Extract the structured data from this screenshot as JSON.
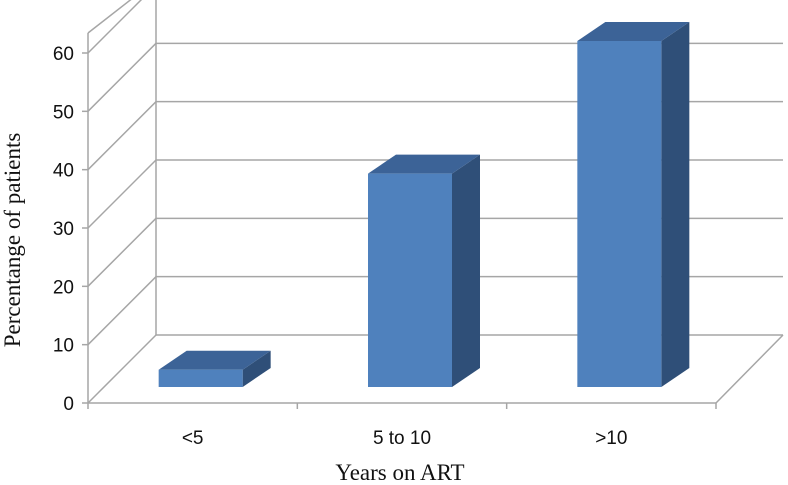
{
  "chart_data": {
    "type": "bar",
    "three_d": true,
    "categories": [
      "<5",
      "5 to 10",
      ">10"
    ],
    "values": [
      3,
      37,
      60
    ],
    "xlabel": "Years on ART",
    "ylabel": "Percentange of patients",
    "ylim": [
      0,
      60
    ],
    "yticks": [
      "0",
      "10",
      "20",
      "30",
      "40",
      "50",
      "60"
    ],
    "grid": true,
    "legend": "none",
    "colors": {
      "bar_front": "#4f81bd",
      "bar_top": "#3c6397",
      "bar_side": "#2f4f78",
      "grid": "#a6a6a6"
    }
  }
}
